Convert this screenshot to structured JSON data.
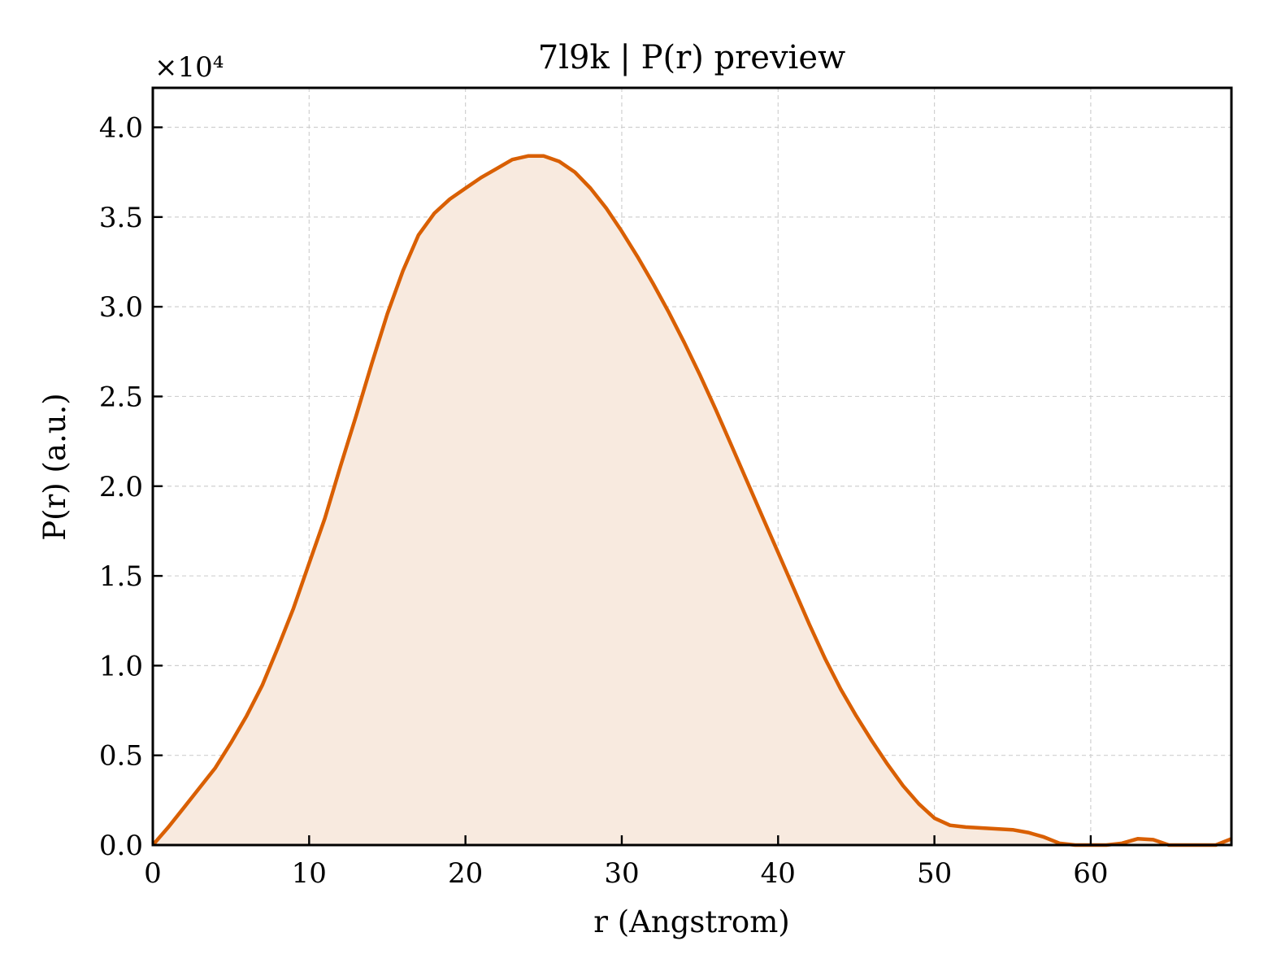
{
  "chart_data": {
    "type": "area",
    "title": "7l9k | P(r) preview",
    "xlabel": "r (Angstrom)",
    "ylabel": "P(r) (a.u.)",
    "y_multiplier": "×10⁴",
    "xlim": [
      0,
      69
    ],
    "ylim": [
      0,
      42200
    ],
    "xticks": [
      0,
      10,
      20,
      30,
      40,
      50,
      60
    ],
    "yticks": [
      0,
      5000,
      10000,
      15000,
      20000,
      25000,
      30000,
      35000,
      40000
    ],
    "ytick_labels": [
      "0.0",
      "0.5",
      "1.0",
      "1.5",
      "2.0",
      "2.5",
      "3.0",
      "3.5",
      "4.0"
    ],
    "grid": true,
    "line_color": "#d95f02",
    "fill_color": "#f8eadf",
    "series": [
      {
        "x": [
          0,
          1,
          2,
          3,
          4,
          5,
          6,
          7,
          8,
          9,
          10,
          11,
          12,
          13,
          14,
          15,
          16,
          17,
          18,
          19,
          20,
          21,
          22,
          23,
          24,
          25,
          26,
          27,
          28,
          29,
          30,
          31,
          32,
          33,
          34,
          35,
          36,
          37,
          38,
          39,
          40,
          41,
          42,
          43,
          44,
          45,
          46,
          47,
          48,
          49,
          50,
          51,
          52,
          53,
          54,
          55,
          56,
          57,
          58,
          59,
          60,
          61,
          62,
          63,
          64,
          65,
          66,
          67,
          68,
          69
        ],
        "y": [
          0,
          1000,
          2100,
          3200,
          4300,
          5700,
          7200,
          8900,
          11000,
          13200,
          15700,
          18200,
          21100,
          23900,
          26800,
          29600,
          32000,
          34000,
          35200,
          36000,
          36600,
          37200,
          37700,
          38200,
          38400,
          38400,
          38100,
          37500,
          36600,
          35500,
          34200,
          32800,
          31300,
          29700,
          28000,
          26200,
          24300,
          22300,
          20300,
          18300,
          16300,
          14300,
          12300,
          10400,
          8700,
          7200,
          5800,
          4500,
          3300,
          2300,
          1500,
          1100,
          1000,
          950,
          900,
          850,
          700,
          450,
          100,
          0,
          0,
          0,
          100,
          350,
          300,
          0,
          0,
          0,
          0,
          350
        ]
      }
    ]
  }
}
